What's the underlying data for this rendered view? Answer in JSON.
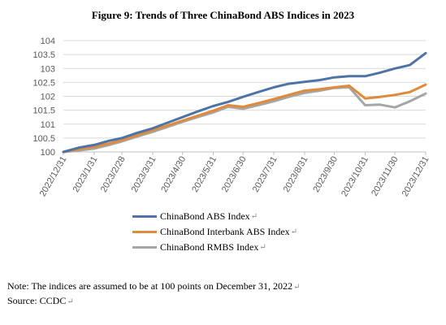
{
  "chart_data": {
    "type": "line",
    "title": "Figure 9: Trends of Three ChinaBond ABS Indices in 2023",
    "xlabel": "",
    "ylabel": "",
    "ylim": [
      100,
      104
    ],
    "y_ticks": [
      "100",
      "100.5",
      "101",
      "101.5",
      "102",
      "102.5",
      "103",
      "103.5",
      "104"
    ],
    "x_ticks": [
      "2022/12/31",
      "2023/1/31",
      "2023/2/28",
      "2023/3/31",
      "2023/4/30",
      "2023/5/31",
      "2023/6/30",
      "2023/7/31",
      "2023/8/31",
      "2023/9/30",
      "2023/10/31",
      "2023/11/30",
      "2023/12/31"
    ],
    "grid": true,
    "legend_position": "bottom",
    "x": [
      "2022-12-31",
      "2023-01-15",
      "2023-01-31",
      "2023-02-15",
      "2023-02-28",
      "2023-03-15",
      "2023-03-31",
      "2023-04-15",
      "2023-04-30",
      "2023-05-15",
      "2023-05-31",
      "2023-06-15",
      "2023-06-30",
      "2023-07-15",
      "2023-07-31",
      "2023-08-15",
      "2023-08-31",
      "2023-09-15",
      "2023-09-30",
      "2023-10-15",
      "2023-10-31",
      "2023-11-15",
      "2023-11-30",
      "2023-12-15",
      "2023-12-31"
    ],
    "series": [
      {
        "name": "ChinaBond ABS Index",
        "color": "#4e73a7",
        "values": [
          100.0,
          100.15,
          100.25,
          100.4,
          100.5,
          100.68,
          100.85,
          101.05,
          101.25,
          101.45,
          101.65,
          101.8,
          101.98,
          102.15,
          102.32,
          102.45,
          102.52,
          102.58,
          102.68,
          102.72,
          102.72,
          102.85,
          103.0,
          103.12,
          103.55
        ]
      },
      {
        "name": "ChinaBond Interbank ABS Index",
        "color": "#e08a3c",
        "values": [
          100.0,
          100.1,
          100.18,
          100.3,
          100.42,
          100.6,
          100.78,
          100.95,
          101.12,
          101.3,
          101.48,
          101.68,
          101.62,
          101.75,
          101.9,
          102.05,
          102.2,
          102.25,
          102.32,
          102.38,
          101.92,
          101.98,
          102.05,
          102.15,
          102.42
        ]
      },
      {
        "name": "ChinaBond RMBS Index",
        "color": "#a6a6a6",
        "values": [
          100.0,
          100.05,
          100.12,
          100.25,
          100.38,
          100.55,
          100.72,
          100.9,
          101.08,
          101.25,
          101.42,
          101.62,
          101.55,
          101.68,
          101.82,
          101.98,
          102.12,
          102.2,
          102.3,
          102.32,
          101.68,
          101.7,
          101.6,
          101.82,
          102.1
        ]
      }
    ],
    "legend_marks": [
      "↵",
      "↵",
      "↵"
    ]
  },
  "note": {
    "line1": "Note: The indices are assumed to be at 100 points on December 31, 2022",
    "line1_mark": "↵",
    "line2": "Source: CCDC",
    "line2_mark": "↵"
  }
}
